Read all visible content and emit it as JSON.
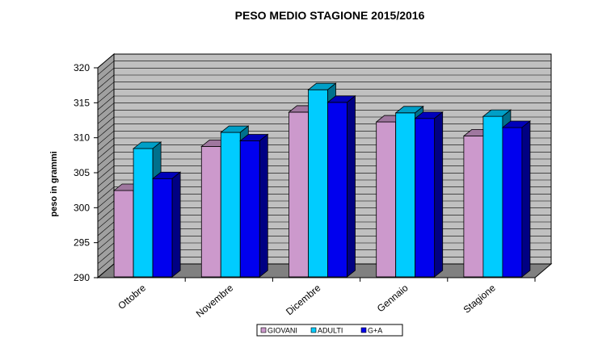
{
  "chart_data": {
    "type": "bar",
    "title": "PESO MEDIO STAGIONE 2015/2016",
    "xlabel": "",
    "ylabel": "peso in grammi",
    "categories": [
      "Ottobre",
      "Novembre",
      "Dicembre",
      "Gennaio",
      "Stagione"
    ],
    "series": [
      {
        "name": "GIOVANI",
        "values": [
          302,
          308.3,
          313.2,
          311.8,
          309.8
        ],
        "color": "#cc99cc"
      },
      {
        "name": "ADULTI",
        "values": [
          308,
          310.3,
          316.4,
          313.1,
          312.6
        ],
        "color": "#00ccff"
      },
      {
        "name": "G+A",
        "values": [
          303.7,
          309.1,
          314.6,
          312.3,
          311.0
        ],
        "color": "#0000ee"
      }
    ],
    "ylim": [
      290,
      320
    ],
    "yticks": [
      290,
      295,
      300,
      305,
      310,
      315,
      320
    ],
    "grid": true,
    "legend_position": "bottom",
    "colors": {
      "wall": "#c0c0c0",
      "floor": "#808080",
      "grid": "#000000"
    }
  }
}
